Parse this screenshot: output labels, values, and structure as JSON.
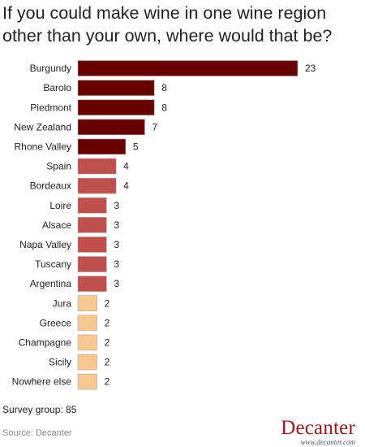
{
  "title": "If you could make wine in one wine region other than your own, where would that be?",
  "survey_text": "Survey group: 85",
  "source_text": "Source: Decanter",
  "logo": {
    "wordmark": "Decanter",
    "url": "www.decanter.com"
  },
  "colors": {
    "high": "#690000",
    "mid": "#c0504d",
    "low": "#f7c891",
    "bar_border": "#aaaaaa"
  },
  "chart_data": {
    "type": "bar",
    "orientation": "horizontal",
    "categories": [
      "Burgundy",
      "Barolo",
      "Piedmont",
      "New Zealand",
      "Rhone Valley",
      "Spain",
      "Bordeaux",
      "Loire",
      "Alsace",
      "Napa Valley",
      "Tuscany",
      "Argentina",
      "Jura",
      "Greece",
      "Champagne",
      "Sicily",
      "Nowhere else"
    ],
    "values": [
      23,
      8,
      8,
      7,
      5,
      4,
      4,
      3,
      3,
      3,
      3,
      3,
      2,
      2,
      2,
      2,
      2
    ],
    "xlim": [
      0,
      23
    ],
    "grid": false,
    "legend": "none"
  }
}
